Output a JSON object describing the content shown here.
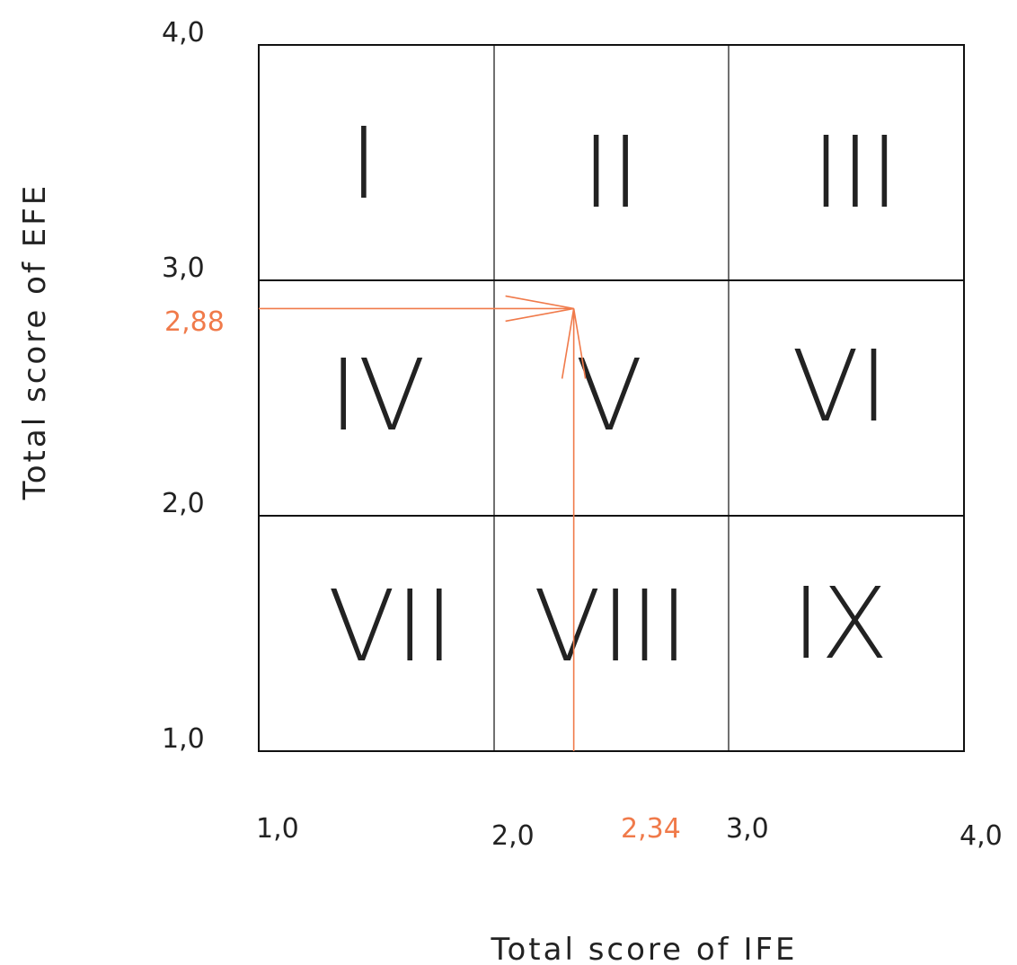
{
  "x_axis": {
    "title": "Total score of IFE",
    "ticks": [
      {
        "value": 1.0,
        "label": "1,0"
      },
      {
        "value": 2.0,
        "label": "2,0"
      },
      {
        "value": 3.0,
        "label": "3,0"
      },
      {
        "value": 4.0,
        "label": "4,0"
      }
    ]
  },
  "y_axis": {
    "title": "Total score of EFE",
    "ticks": [
      {
        "value": 4.0,
        "label": "4,0"
      },
      {
        "value": 3.0,
        "label": "3,0"
      },
      {
        "value": 2.0,
        "label": "2,0"
      },
      {
        "value": 1.0,
        "label": "1,0"
      }
    ]
  },
  "cells": [
    "I",
    "II",
    "III",
    "IV",
    "V",
    "VI",
    "VII",
    "VIII",
    "IX"
  ],
  "position": {
    "x": 2.34,
    "y": 2.88,
    "x_label": "2,34",
    "y_label": "2,88"
  },
  "colors": {
    "line": "#111111",
    "text": "#222222",
    "highlight": "#f07a4a"
  }
}
